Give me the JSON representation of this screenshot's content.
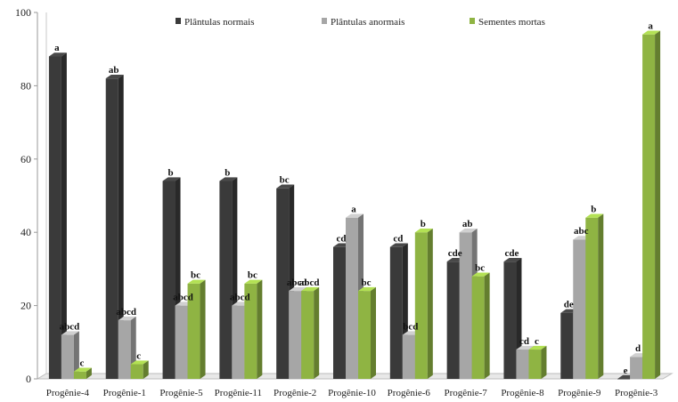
{
  "chart_data": {
    "type": "bar",
    "categories": [
      "Progênie-4",
      "Progênie-1",
      "Progênie-5",
      "Progênie-11",
      "Progênie-2",
      "Progênie-10",
      "Progênie-6",
      "Progênie-7",
      "Progênie-8",
      "Progênie-9",
      "Progênie-3"
    ],
    "series": [
      {
        "name": "Plântulas normais",
        "color": "#3a3a3a",
        "values": [
          88,
          82,
          54,
          54,
          52,
          36,
          36,
          32,
          32,
          18,
          0
        ],
        "labels": [
          "a",
          "ab",
          "b",
          "b",
          "bc",
          "cd",
          "cd",
          "cde",
          "cde",
          "de",
          "e"
        ]
      },
      {
        "name": "Plântulas anormais",
        "color": "#a6a6a6",
        "values": [
          12,
          16,
          20,
          20,
          24,
          44,
          12,
          40,
          8,
          38,
          6
        ],
        "labels": [
          "abcd",
          "abcd",
          "abcd",
          "abcd",
          "abcd",
          "a",
          "bcd",
          "ab",
          "cd",
          "abc",
          "d"
        ]
      },
      {
        "name": "Sementes mortas",
        "color": "#8fb443",
        "values": [
          2,
          4,
          26,
          26,
          24,
          24,
          40,
          28,
          8,
          44,
          94
        ],
        "labels": [
          "c",
          "c",
          "bc",
          "bc",
          "abcd",
          "bc",
          "b",
          "bc",
          "c",
          "b",
          "a"
        ]
      }
    ],
    "yticks": [
      0,
      20,
      40,
      60,
      80,
      100
    ],
    "ylim": [
      0,
      100
    ],
    "legend_position": "top",
    "grid": false
  }
}
